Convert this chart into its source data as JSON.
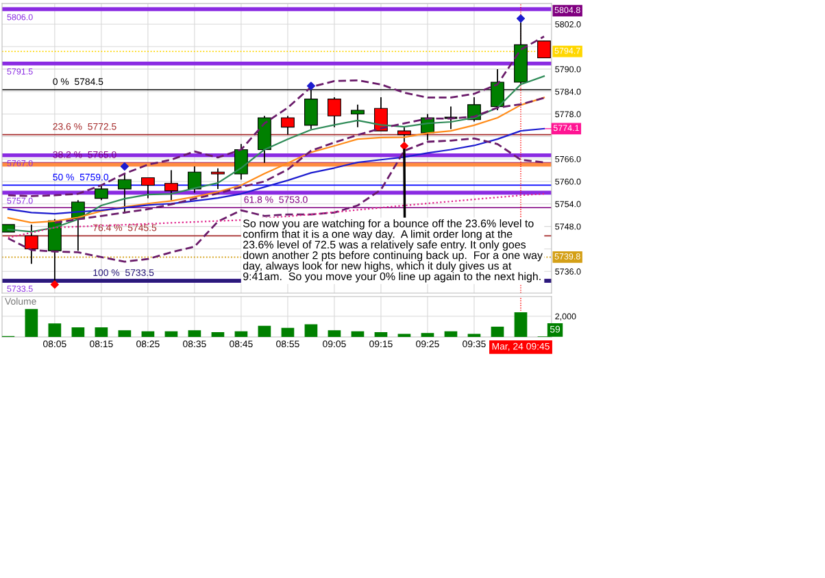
{
  "chart_data": [
    {
      "type": "candlestick",
      "x": [
        7.9167,
        8.0,
        8.0833,
        8.1667,
        8.25,
        8.3333,
        8.4167,
        8.5,
        8.5833,
        8.6667,
        8.75,
        8.8333,
        8.9167,
        9.0,
        9.0833,
        9.1667,
        9.25,
        9.3333,
        9.4167,
        9.5,
        9.5833,
        9.6667,
        9.75,
        9.8333
      ],
      "ohlc": [
        [
          5746.5,
          5748.5,
          5746.5,
          5748.5
        ],
        [
          5745.5,
          5748.5,
          5738,
          5742
        ],
        [
          5741.5,
          5750,
          5733.5,
          5749.5
        ],
        [
          5750,
          5755,
          5741.5,
          5754.5
        ],
        [
          5755.5,
          5759,
          5755,
          5758
        ],
        [
          5758,
          5762,
          5751.5,
          5760.5
        ],
        [
          5761,
          5761,
          5755.5,
          5759
        ],
        [
          5759.5,
          5763,
          5755,
          5757.5
        ],
        [
          5758,
          5764,
          5757,
          5762.5
        ],
        [
          5762.5,
          5763.5,
          5758,
          5762
        ],
        [
          5762,
          5770,
          5760.5,
          5768.5
        ],
        [
          5768.5,
          5777.5,
          5765,
          5777
        ],
        [
          5777,
          5777.5,
          5772.5,
          5774.5
        ],
        [
          5775,
          5784.5,
          5774,
          5782
        ],
        [
          5782,
          5782.5,
          5774.5,
          5777.5
        ],
        [
          5778,
          5780.5,
          5774.5,
          5779
        ],
        [
          5779.5,
          5782.5,
          5773.5,
          5773.5
        ],
        [
          5773.5,
          5774.5,
          5770.5,
          5772.5
        ],
        [
          5773,
          5778,
          5771,
          5777
        ],
        [
          5777,
          5780,
          5774,
          5777
        ],
        [
          5776.5,
          5782.5,
          5776,
          5780.5
        ],
        [
          5780,
          5790,
          5779,
          5786.5
        ],
        [
          5786.5,
          5802.5,
          5786,
          5796.5
        ],
        [
          5797.5,
          5797.5,
          5793,
          5793
        ]
      ],
      "colors": [
        "#008000",
        "#ff0000",
        "#008000",
        "#008000",
        "#008000",
        "#008000",
        "#ff0000",
        "#ff0000",
        "#008000",
        "#ff0000",
        "#008000",
        "#008000",
        "#ff0000",
        "#008000",
        "#ff0000",
        "#008000",
        "#ff0000",
        "#ff0000",
        "#008000",
        "#000000",
        "#008000",
        "#008000",
        "#008000",
        "#ff0000"
      ],
      "series": [
        {
          "type": "line",
          "color": "#2e8b57",
          "line_style": "solid",
          "x": [
            7.9167,
            8.0,
            8.0833,
            8.1667,
            8.25,
            8.3333,
            8.4167,
            8.5,
            8.5833,
            8.6667,
            8.75,
            8.8333,
            8.9167,
            9.0,
            9.0833,
            9.1667,
            9.25,
            9.3333,
            9.4167,
            9.5,
            9.5833,
            9.6667,
            9.75,
            9.8333
          ],
          "values": [
            5747.2,
            5746.6,
            5747.7,
            5749.9,
            5753.6,
            5755.4,
            5756.5,
            5756.7,
            5758.2,
            5759.6,
            5763.6,
            5768.5,
            5771.3,
            5773.8,
            5775.1,
            5776.3,
            5775.1,
            5774.6,
            5775.5,
            5775.9,
            5777,
            5779.7,
            5785.9,
            5788.1
          ]
        },
        {
          "type": "line",
          "color": "#ff8c1a",
          "line_style": "solid",
          "x": [
            7.9167,
            8.0,
            8.0833,
            8.1667,
            8.25,
            8.3333,
            8.4167,
            8.5,
            8.5833,
            8.6667,
            8.75,
            8.8333,
            8.9167,
            9.0,
            9.0833,
            9.1667,
            9.25,
            9.3333,
            9.4167,
            9.5,
            9.5833,
            9.6667,
            9.75,
            9.8333
          ],
          "values": [
            5750.3,
            5749,
            5749.4,
            5750.4,
            5752.1,
            5753.2,
            5754.1,
            5754.8,
            5755.9,
            5757.2,
            5759,
            5762.1,
            5764.9,
            5767.8,
            5769.5,
            5771.3,
            5771.7,
            5771.8,
            5772.9,
            5773.5,
            5775,
            5777,
            5780.4,
            5782.4
          ]
        },
        {
          "type": "line",
          "color": "#1c1ccf",
          "line_style": "solid",
          "x": [
            7.9167,
            8.0,
            8.0833,
            8.1667,
            8.25,
            8.3333,
            8.4167,
            8.5,
            8.5833,
            8.6667,
            8.75,
            8.8333,
            8.9167,
            9.0,
            9.0833,
            9.1667,
            9.25,
            9.3333,
            9.4167,
            9.5,
            9.5833,
            9.6667,
            9.75,
            9.8333
          ],
          "values": [
            5752.6,
            5751.7,
            5751.4,
            5751.9,
            5752.3,
            5753,
            5753.7,
            5754.1,
            5754.8,
            5755.6,
            5756.7,
            5758.5,
            5760.3,
            5762.3,
            5763.6,
            5765.1,
            5765.8,
            5766.5,
            5767.6,
            5768.5,
            5769.6,
            5771.3,
            5773.5,
            5774.1
          ]
        },
        {
          "type": "line",
          "color": "#6a1b6a",
          "line_style": "dashed",
          "x": [
            7.9167,
            8.0,
            8.0833,
            8.1667,
            8.25,
            8.3333,
            8.4167,
            8.5,
            8.5833,
            8.6667,
            8.75,
            8.8333,
            8.9167,
            9.0,
            9.0833,
            9.1667,
            9.25,
            9.3333,
            9.4167,
            9.5,
            9.5833,
            9.6667,
            9.75,
            9.8333
          ],
          "values": [
            5756.3,
            5756.1,
            5756.3,
            5756.7,
            5759,
            5762.1,
            5764.5,
            5765.8,
            5768,
            5766.4,
            5768.5,
            5775.5,
            5779.7,
            5785.2,
            5786.8,
            5787,
            5785.9,
            5783.7,
            5782.4,
            5782.4,
            5783.4,
            5785.9,
            5795.2,
            5798.7
          ]
        },
        {
          "type": "line",
          "color": "#6a1b6a",
          "line_style": "dashed",
          "x": [
            8.0833,
            8.1667,
            8.25,
            8.3333,
            8.4167,
            8.5,
            8.5833,
            8.6667,
            8.75,
            8.8333,
            8.9167,
            9.0,
            9.0833,
            9.1667,
            9.25,
            9.3333,
            9.4167,
            9.5,
            9.5833,
            9.6667,
            9.75,
            9.8333
          ],
          "values": [
            5749,
            5749.9,
            5750.8,
            5751.7,
            5752.6,
            5753.9,
            5755.4,
            5756.8,
            5758.5,
            5760,
            5763.2,
            5768.2,
            5770.4,
            5772.4,
            5774.2,
            5775.5,
            5776.8,
            5776.8,
            5777.3,
            5779.7,
            5780.6,
            5782.3
          ]
        },
        {
          "type": "line",
          "color": "#6a1b6a",
          "line_style": "dashed",
          "x": [
            7.9167,
            8.0,
            8.0833,
            8.1667,
            8.25,
            8.3333,
            8.4167,
            8.5,
            8.5833,
            8.6667,
            8.75,
            8.8333,
            8.9167,
            9.0,
            9.0833,
            9.1667,
            9.25,
            9.3333,
            9.4167,
            9.5,
            9.5833,
            9.6667,
            9.75,
            9.8333
          ],
          "values": [
            5744.8,
            5741.7,
            5741.3,
            5741.1,
            5739.8,
            5738.6,
            5739.3,
            5741.1,
            5742.6,
            5749.3,
            5752.3,
            5750.8,
            5751.2,
            5751.2,
            5751.7,
            5753.6,
            5757.8,
            5768.2,
            5770.6,
            5770.9,
            5771.5,
            5770,
            5765.8,
            5765.1
          ]
        },
        {
          "type": "line",
          "color": "#e0218a",
          "line_style": "dotted",
          "x": [
            7.9167,
            8.0833,
            8.75,
            9.0,
            9.3333,
            9.75,
            9.8333
          ],
          "values": [
            5745,
            5747.7,
            5749.7,
            5751.2,
            5753.6,
            5756.3,
            5756.7
          ]
        },
        {
          "type": "scatter",
          "marker": "diamond",
          "x": [
            8.3333,
            9.0,
            9.75,
            8.0833,
            9.3333
          ],
          "values": [
            5764,
            5785.5,
            5803.5,
            5732.5,
            5769.5
          ],
          "colors": [
            "#1c1ccf",
            "#1c1ccf",
            "#1c1ccf",
            "#ff0000",
            "#ff0000"
          ]
        }
      ],
      "xlim": [
        7.895,
        9.86
      ],
      "xticks": [
        {
          "value": 8.0833,
          "label": null
        },
        {
          "value": 8.25,
          "label": null
        },
        {
          "value": 8.4167,
          "label": null
        },
        {
          "value": 8.5833,
          "label": null
        },
        {
          "value": 8.75,
          "label": null
        },
        {
          "value": 8.9167,
          "label": null
        },
        {
          "value": 9.0833,
          "label": null
        },
        {
          "value": 9.25,
          "label": null
        },
        {
          "value": 9.4167,
          "label": null
        },
        {
          "value": 9.5833,
          "label": null
        }
      ],
      "ylim": [
        5730.2,
        5807.5
      ],
      "yticks": [
        {
          "value": 5736,
          "label": "5736.0"
        },
        {
          "value": 5742,
          "label": null
        },
        {
          "value": 5748,
          "label": "5748.0"
        },
        {
          "value": 5754,
          "label": "5754.0"
        },
        {
          "value": 5760,
          "label": "5760.0"
        },
        {
          "value": 5766,
          "label": "5766.0"
        },
        {
          "value": 5772,
          "label": null
        },
        {
          "value": 5778,
          "label": "5778.0"
        },
        {
          "value": 5784,
          "label": "5784.0"
        },
        {
          "value": 5790,
          "label": "5790.0"
        },
        {
          "value": 5796,
          "label": null
        },
        {
          "value": 5802,
          "label": "5802.0"
        }
      ],
      "tick_labels": "y",
      "grid": true,
      "ref_lines": [
        {
          "axis": "y",
          "value": 5806.0,
          "label": "5806.0",
          "color": "#8a2be2",
          "line_style": "solid"
        },
        {
          "axis": "y",
          "value": 5791.5,
          "label": "5791.5",
          "color": "#8a2be2",
          "line_style": "solid"
        },
        {
          "axis": "y",
          "value": 5767.0,
          "label": "5767.0",
          "color": "#8a2be2",
          "line_style": "solid"
        },
        {
          "axis": "y",
          "value": 5757.0,
          "label": "5757.0",
          "color": "#8a2be2",
          "line_style": "solid"
        },
        {
          "axis": "y",
          "value": 5733.5,
          "label": "5733.5",
          "color": "#8a2be2",
          "line_style": "solid"
        },
        {
          "axis": "y",
          "value": 5784.5,
          "label": "0 %  5784.5",
          "color": "#000000",
          "line_style": "solid"
        },
        {
          "axis": "y",
          "value": 5772.5,
          "label": "23.6 %  5772.5",
          "color": "#a52a2a",
          "line_style": "solid"
        },
        {
          "axis": "y",
          "value": 5765.0,
          "label": "38.2 %  5765.0",
          "color": "#800080",
          "line_style": "solid"
        },
        {
          "axis": "y",
          "value": 5759.0,
          "label": "50 %  5759.0",
          "color": "#0000ff",
          "line_style": "solid"
        },
        {
          "axis": "y",
          "value": 5753.0,
          "label": "61.8 %  5753.0",
          "color": "#800080",
          "line_style": "solid"
        },
        {
          "axis": "y",
          "value": 5745.5,
          "label": "76.4 %  5745.5",
          "color": "#a52a2a",
          "line_style": "solid"
        },
        {
          "axis": "y",
          "value": 5733.5,
          "label": "100 %  5733.5",
          "color": "#2a1a7a",
          "line_style": "solid"
        },
        {
          "axis": "y",
          "value": 5764.5,
          "color": "#ff8c40",
          "line_style": "solid"
        },
        {
          "axis": "y",
          "value": 5794.7,
          "label": "5794.7",
          "color": "#ffd700",
          "line_style": "dotted"
        },
        {
          "axis": "y",
          "value": 5739.8,
          "label": "5739.8",
          "color": "#d4a017",
          "line_style": "dotted"
        },
        {
          "axis": "x",
          "value": 9.75,
          "color": "#ff0000",
          "line_style": "dotted"
        }
      ],
      "annotations": [
        "5804.8",
        {
          "text": "5774.1",
          "x": 9.8333,
          "y": 5774.1
        },
        {
          "text": "So now you are watching for a bounce off the 23.6% level to\nconfirm that it is a one way day.  A limit order long at the\n23.6% level of 72.5 was a relatively safe entry. It only goes\ndown another 2 pts before continuing back up.  For a one way\nday, always look for new highs, which it duly gives us at\n9:41am.  So you move your 0% line up again to the next high.",
          "x": 9.3333,
          "y": 5768.5
        }
      ]
    },
    {
      "type": "bar",
      "title": "Volume",
      "x": [
        7.9167,
        8.0,
        8.0833,
        8.1667,
        8.25,
        8.3333,
        8.4167,
        8.5,
        8.5833,
        8.6667,
        8.75,
        8.8333,
        8.9167,
        9.0,
        9.0833,
        9.1667,
        9.25,
        9.3333,
        9.4167,
        9.5,
        9.5833,
        9.6667,
        9.75,
        9.8333
      ],
      "values": [
        80,
        2690,
        1310,
        920,
        920,
        650,
        540,
        540,
        650,
        460,
        540,
        1080,
        880,
        1230,
        650,
        540,
        460,
        300,
        390,
        540,
        300,
        1000,
        2380,
        59
      ],
      "value_labels": [
        null,
        null,
        null,
        null,
        null,
        null,
        null,
        null,
        null,
        null,
        null,
        null,
        null,
        null,
        null,
        null,
        null,
        null,
        null,
        null,
        null,
        null,
        null,
        "59"
      ],
      "color": "#008000",
      "xlim": [
        7.895,
        9.86
      ],
      "xticks": [
        {
          "value": 8.0833,
          "label": "08:05"
        },
        {
          "value": 8.25,
          "label": "08:15"
        },
        {
          "value": 8.4167,
          "label": "08:25"
        },
        {
          "value": 8.5833,
          "label": "08:35"
        },
        {
          "value": 8.75,
          "label": "08:45"
        },
        {
          "value": 8.9167,
          "label": "08:55"
        },
        {
          "value": 9.0833,
          "label": "09:05"
        },
        {
          "value": 9.25,
          "label": "09:15"
        },
        {
          "value": 9.4167,
          "label": "09:25"
        },
        {
          "value": 9.5833,
          "label": "09:35"
        }
      ],
      "ylim": [
        0,
        3900
      ],
      "yticks": [
        {
          "value": 2000,
          "label": "2,000"
        }
      ],
      "grid": true,
      "ref_lines": [
        {
          "axis": "x",
          "value": 9.75,
          "color": "#ff0000",
          "line_style": "dotted"
        }
      ],
      "annotations": [
        "Mar, 24 09:45"
      ]
    }
  ]
}
